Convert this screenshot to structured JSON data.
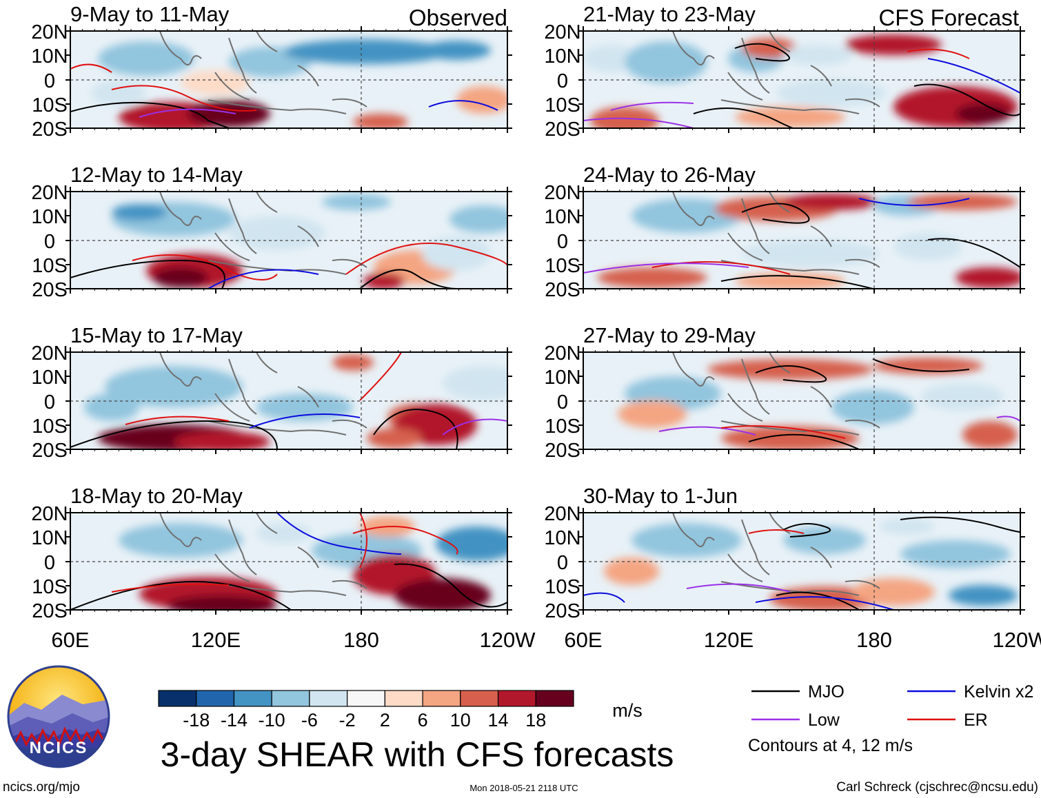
{
  "title": "3-day SHEAR with CFS forecasts",
  "units": "m/s",
  "source_url": "ncics.org/mjo",
  "timestamp": "Mon 2018-05-21 2118 UTC",
  "credit": "Carl Schreck (cjschrec@ncsu.edu)",
  "logo_text": "NCICS",
  "column_labels": {
    "observed": "Observed",
    "forecast": "CFS Forecast"
  },
  "contour_note": "Contours at 4, 12 m/s",
  "colors": {
    "mjo": "#000000",
    "kelvin": "#0a0adf",
    "low": "#9b30e8",
    "er": "#e01010",
    "colorbar": [
      "#08306b",
      "#2166ac",
      "#4393c3",
      "#92c5de",
      "#d1e5f0",
      "#f7f7f7",
      "#fddbc7",
      "#f4a582",
      "#d6604d",
      "#b2182b",
      "#67001f"
    ]
  },
  "chart_data": {
    "type": "heatmap",
    "variable": "3-day vertical wind shear anomaly",
    "y_ticks": [
      "20N",
      "10N",
      "0",
      "10S",
      "20S"
    ],
    "x_ticks": [
      "60E",
      "120E",
      "180",
      "120W"
    ],
    "colorbar_ticks": [
      "-18",
      "-14",
      "-10",
      "-6",
      "-2",
      "2",
      "6",
      "10",
      "14",
      "18"
    ],
    "legend": [
      {
        "name": "MJO",
        "color": "#000000"
      },
      {
        "name": "Kelvin x2",
        "color": "#0a0adf"
      },
      {
        "name": "Low",
        "color": "#9b30e8"
      },
      {
        "name": "ER",
        "color": "#e01010"
      }
    ],
    "panels": [
      {
        "label": "9-May to 11-May",
        "type": "observed"
      },
      {
        "label": "12-May to 14-May",
        "type": "observed"
      },
      {
        "label": "15-May to 17-May",
        "type": "observed"
      },
      {
        "label": "18-May to 20-May",
        "type": "observed"
      },
      {
        "label": "21-May to 23-May",
        "type": "forecast"
      },
      {
        "label": "24-May to 26-May",
        "type": "forecast"
      },
      {
        "label": "27-May to 29-May",
        "type": "forecast"
      },
      {
        "label": "30-May to 1-Jun",
        "type": "forecast"
      }
    ]
  }
}
